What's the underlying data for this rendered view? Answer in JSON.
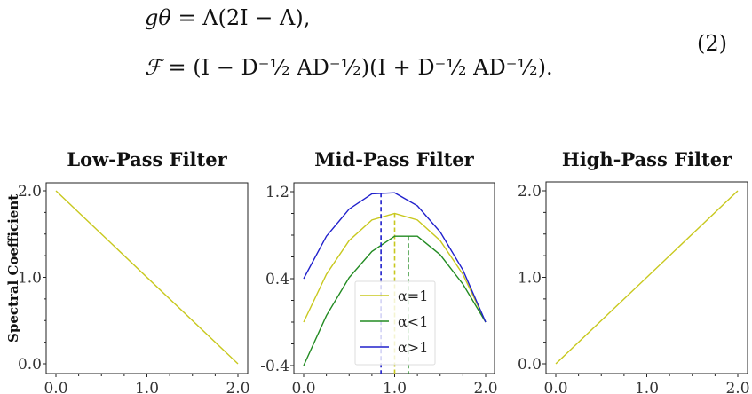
{
  "equation": {
    "line1_lhs": "gθ",
    "line1_rhs": "= Λ(2I − Λ),",
    "line2_lhs": "ℱ",
    "line2_rhs": "= (I − D⁻½ AD⁻½)(I + D⁻½ AD⁻½).",
    "number": "(2)"
  },
  "chart_data": [
    {
      "type": "line",
      "title": "Low-Pass Filter",
      "xlabel": "",
      "ylabel": "Spectral Coefficient",
      "xlim": [
        0.0,
        2.0
      ],
      "ylim": [
        0.0,
        2.0
      ],
      "xticks": [
        "0.0",
        "1.0",
        "2.0"
      ],
      "yticks": [
        "0.0",
        "1.0",
        "2.0"
      ],
      "series": [
        {
          "name": "",
          "color": "#c8c81e",
          "x": [
            0.0,
            2.0
          ],
          "y": [
            2.0,
            0.0
          ]
        }
      ]
    },
    {
      "type": "line",
      "title": "Mid-Pass Filter",
      "xlabel": "",
      "ylabel": "",
      "xlim": [
        0.0,
        2.0
      ],
      "ylim": [
        -0.4,
        1.2
      ],
      "xticks": [
        "0.0",
        "1.0",
        "2.0"
      ],
      "yticks": [
        "-0.4",
        "0.4",
        "1.2"
      ],
      "legend": [
        "α=1",
        "α<1",
        "α>1"
      ],
      "series": [
        {
          "name": "α=1",
          "color": "#c8c81e",
          "x": [
            0,
            0.25,
            0.5,
            0.75,
            1.0,
            1.25,
            1.5,
            1.75,
            2.0
          ],
          "y": [
            0.0,
            0.44,
            0.75,
            0.94,
            1.0,
            0.94,
            0.75,
            0.44,
            0.0
          ],
          "peak_x": 1.0
        },
        {
          "name": "α<1",
          "color": "#228b22",
          "x": [
            0,
            0.25,
            0.5,
            0.75,
            1.0,
            1.25,
            1.5,
            1.75,
            2.0
          ],
          "y": [
            -0.4,
            0.06,
            0.41,
            0.65,
            0.79,
            0.79,
            0.62,
            0.35,
            0.0
          ],
          "peak_x": 1.15
        },
        {
          "name": "α>1",
          "color": "#2020cc",
          "x": [
            0,
            0.25,
            0.5,
            0.75,
            1.0,
            1.25,
            1.5,
            1.75,
            2.0
          ],
          "y": [
            0.4,
            0.79,
            1.04,
            1.18,
            1.19,
            1.07,
            0.83,
            0.48,
            0.0
          ],
          "peak_x": 0.85
        }
      ]
    },
    {
      "type": "line",
      "title": "High-Pass Filter",
      "xlabel": "",
      "ylabel": "",
      "xlim": [
        0.0,
        2.0
      ],
      "ylim": [
        0.0,
        2.0
      ],
      "xticks": [
        "0.0",
        "1.0",
        "2.0"
      ],
      "yticks": [
        "0.0",
        "1.0",
        "2.0"
      ],
      "series": [
        {
          "name": "",
          "color": "#c8c81e",
          "x": [
            0.0,
            2.0
          ],
          "y": [
            0.0,
            2.0
          ]
        }
      ]
    }
  ]
}
